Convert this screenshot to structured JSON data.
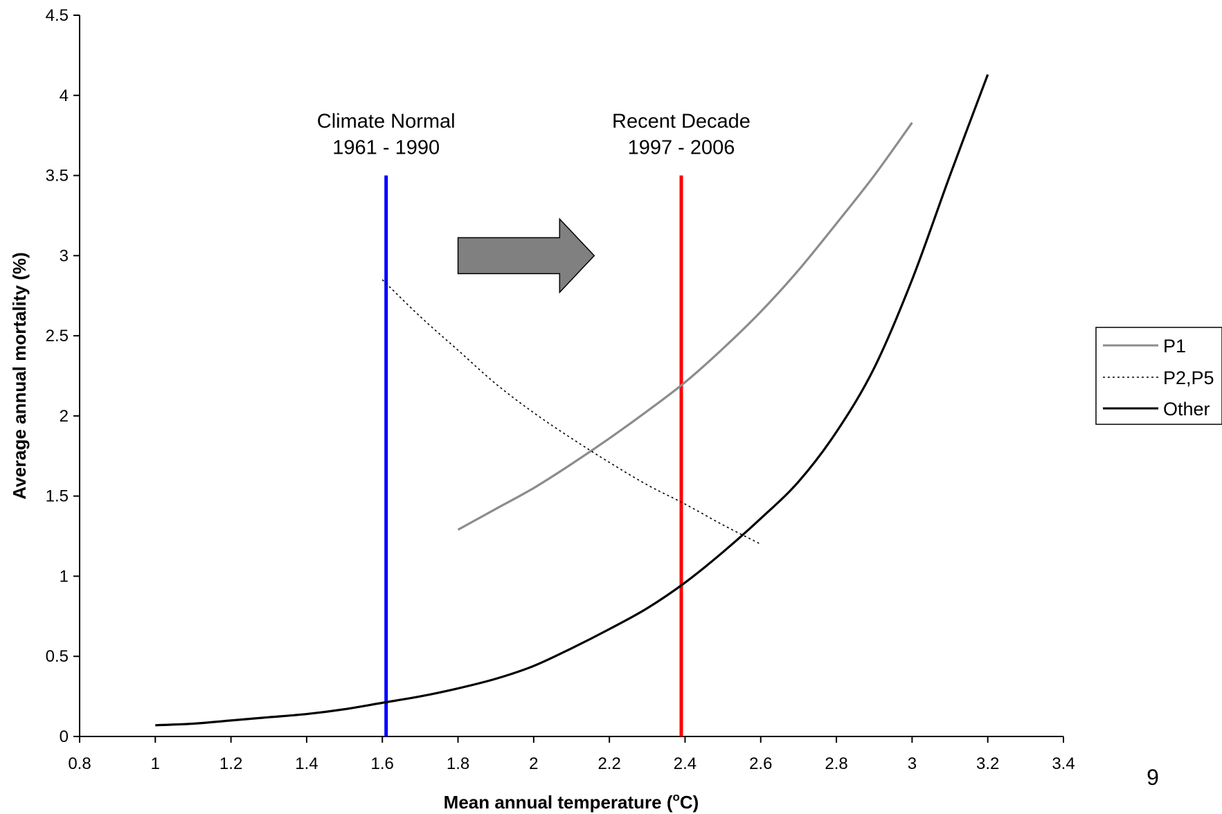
{
  "chart_data": {
    "type": "line",
    "xlabel": "Mean annual temperature (",
    "xlabel_sup": "o",
    "xlabel_unit": "C)",
    "ylabel": "Average annual mortality (%)",
    "xlim": [
      0.8,
      3.4
    ],
    "ylim": [
      0,
      4.5
    ],
    "xticks": [
      "0.8",
      "1",
      "1.2",
      "1.4",
      "1.6",
      "1.8",
      "2",
      "2.2",
      "2.4",
      "2.6",
      "2.8",
      "3",
      "3.2",
      "3.4"
    ],
    "yticks": [
      "0",
      "0.5",
      "1",
      "1.5",
      "2",
      "2.5",
      "3",
      "3.5",
      "4",
      "4.5"
    ],
    "grid": false,
    "legend_position": "right",
    "series": [
      {
        "name": "P1",
        "color": "#8c8c8c",
        "style": "solid",
        "x": [
          1.8,
          1.9,
          2.0,
          2.1,
          2.2,
          2.3,
          2.4,
          2.5,
          2.6,
          2.7,
          2.8,
          2.9,
          3.0
        ],
        "y": [
          1.29,
          1.42,
          1.55,
          1.7,
          1.86,
          2.03,
          2.21,
          2.42,
          2.65,
          2.91,
          3.2,
          3.5,
          3.83
        ]
      },
      {
        "name": "P2,P5",
        "color": "#000000",
        "style": "dotted",
        "x": [
          1.6,
          1.7,
          1.8,
          1.9,
          2.0,
          2.1,
          2.2,
          2.3,
          2.4,
          2.5,
          2.6
        ],
        "y": [
          2.85,
          2.62,
          2.41,
          2.2,
          2.02,
          1.86,
          1.71,
          1.57,
          1.45,
          1.32,
          1.2
        ]
      },
      {
        "name": "Other",
        "color": "#000000",
        "style": "solid",
        "x": [
          1.0,
          1.1,
          1.2,
          1.3,
          1.4,
          1.5,
          1.6,
          1.7,
          1.8,
          1.9,
          2.0,
          2.1,
          2.2,
          2.3,
          2.4,
          2.5,
          2.6,
          2.7,
          2.8,
          2.9,
          3.0,
          3.1,
          3.2
        ],
        "y": [
          0.07,
          0.08,
          0.1,
          0.12,
          0.14,
          0.17,
          0.21,
          0.25,
          0.3,
          0.36,
          0.44,
          0.55,
          0.67,
          0.8,
          0.96,
          1.15,
          1.36,
          1.59,
          1.9,
          2.3,
          2.85,
          3.5,
          4.13
        ]
      }
    ],
    "reference_lines": [
      {
        "x": 1.61,
        "color": "#0000ff",
        "label_line1": "Climate Normal",
        "label_line2": "1961 - 1990",
        "y_from": 0,
        "y_to": 3.5
      },
      {
        "x": 2.39,
        "color": "#ff0000",
        "label_line1": "Recent Decade",
        "label_line2": "1997 - 2006",
        "y_from": 0,
        "y_to": 3.5
      }
    ],
    "arrow": {
      "x_from": 1.8,
      "x_to": 2.16,
      "y": 3.0,
      "color": "#808080",
      "direction": "right"
    }
  },
  "page_number": "9"
}
